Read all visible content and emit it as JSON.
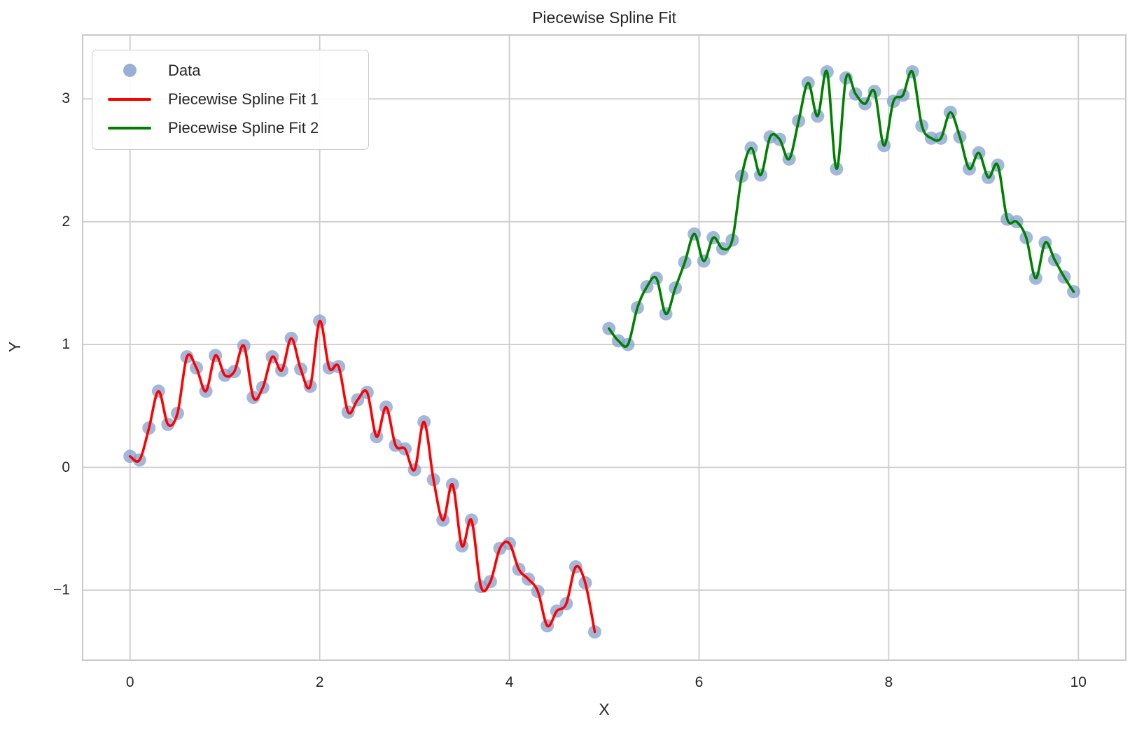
{
  "title": "Piecewise Spline Fit",
  "axes": {
    "xlabel": "X",
    "ylabel": "Y",
    "xticks": {
      "values": [
        0,
        2,
        4,
        6,
        8,
        10
      ],
      "labels": [
        "0",
        "2",
        "4",
        "6",
        "8",
        "10"
      ]
    },
    "yticks": {
      "values": [
        -1,
        0,
        1,
        2,
        3
      ],
      "labels": [
        "−1",
        "0",
        "1",
        "2",
        "3"
      ]
    },
    "grid": true,
    "grid_color": "#cccccc",
    "frame_color": "#c9c9c9"
  },
  "legend": {
    "position": "upper-left",
    "items": [
      {
        "label": "Data",
        "marker": "dot",
        "color": "#7e9ccc"
      },
      {
        "label": "Piecewise Spline Fit 1",
        "marker": "line",
        "color": "#ff0000"
      },
      {
        "label": "Piecewise Spline Fit 2",
        "marker": "line",
        "color": "#008000"
      }
    ]
  },
  "colors": {
    "scatter": "#7e9ccc",
    "fit1": "#ff0000",
    "fit2": "#008000",
    "text": "#262626",
    "background": "#ffffff"
  },
  "chart_data": {
    "type": "scatter",
    "title": "Piecewise Spline Fit",
    "xlabel": "X",
    "ylabel": "Y",
    "xlim": [
      -0.5,
      10.5
    ],
    "ylim": [
      -1.57,
      3.52
    ],
    "series": [
      {
        "name": "Piecewise Spline Fit 1",
        "type": "spline-through-points",
        "color": "#ff0000",
        "x": [
          0.0,
          0.1,
          0.2,
          0.3,
          0.4,
          0.5,
          0.6,
          0.7,
          0.8,
          0.9,
          1.0,
          1.1,
          1.2,
          1.3,
          1.4,
          1.5,
          1.6,
          1.7,
          1.8,
          1.9,
          2.0,
          2.1,
          2.2,
          2.3,
          2.4,
          2.5,
          2.6,
          2.7,
          2.8,
          2.9,
          3.0,
          3.1,
          3.2,
          3.3,
          3.4,
          3.5,
          3.6,
          3.7,
          3.8,
          3.9,
          4.0,
          4.1,
          4.2,
          4.3,
          4.4,
          4.5,
          4.6,
          4.7,
          4.8,
          4.9
        ],
        "y": [
          0.09,
          0.06,
          0.32,
          0.62,
          0.35,
          0.44,
          0.9,
          0.81,
          0.62,
          0.91,
          0.75,
          0.78,
          0.99,
          0.57,
          0.65,
          0.9,
          0.79,
          1.05,
          0.8,
          0.66,
          1.19,
          0.81,
          0.82,
          0.45,
          0.55,
          0.61,
          0.25,
          0.49,
          0.18,
          0.15,
          -0.02,
          0.37,
          -0.1,
          -0.43,
          -0.14,
          -0.64,
          -0.43,
          -0.97,
          -0.93,
          -0.66,
          -0.62,
          -0.83,
          -0.91,
          -1.01,
          -1.29,
          -1.17,
          -1.11,
          -0.81,
          -0.94,
          -1.34
        ]
      },
      {
        "name": "Piecewise Spline Fit 2",
        "type": "spline-through-points",
        "color": "#008000",
        "x": [
          5.05,
          5.15,
          5.25,
          5.35,
          5.45,
          5.55,
          5.65,
          5.75,
          5.85,
          5.95,
          6.05,
          6.15,
          6.25,
          6.35,
          6.45,
          6.55,
          6.65,
          6.75,
          6.85,
          6.95,
          7.05,
          7.15,
          7.25,
          7.35,
          7.45,
          7.55,
          7.65,
          7.75,
          7.85,
          7.95,
          8.05,
          8.15,
          8.25,
          8.35,
          8.45,
          8.55,
          8.65,
          8.75,
          8.85,
          8.95,
          9.05,
          9.15,
          9.25,
          9.35,
          9.45,
          9.55,
          9.65,
          9.75,
          9.85,
          9.95
        ],
        "y": [
          1.13,
          1.03,
          1.0,
          1.3,
          1.47,
          1.54,
          1.25,
          1.46,
          1.67,
          1.9,
          1.68,
          1.87,
          1.78,
          1.85,
          2.37,
          2.6,
          2.38,
          2.69,
          2.67,
          2.51,
          2.82,
          3.13,
          2.86,
          3.22,
          2.43,
          3.17,
          3.04,
          2.96,
          3.06,
          2.62,
          2.98,
          3.03,
          3.22,
          2.78,
          2.68,
          2.68,
          2.89,
          2.69,
          2.43,
          2.56,
          2.36,
          2.46,
          2.02,
          2.0,
          1.87,
          1.54,
          1.83,
          1.69,
          1.55,
          1.43
        ]
      }
    ],
    "scatter_series_name": "Data",
    "note": "Data scatter points coincide with the spline points of both segments"
  }
}
